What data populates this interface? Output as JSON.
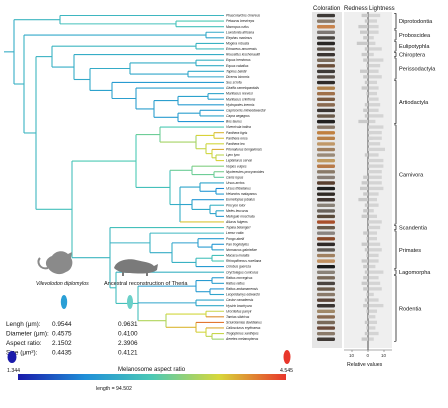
{
  "headers": {
    "coloration": "Coloration",
    "redness": "Redness",
    "lightness": "Lightness"
  },
  "species": [
    "Phascolarctos cinereus",
    "Petaurus breviceps",
    "Macropus rufus",
    "Loxodonta africana",
    "Elephas maximus",
    "Mogera robusta",
    "Erinaceus amurensis",
    "Rousettus leschenaultii",
    "Equus hemionus",
    "Equus caballus",
    "Tapirus bairdii",
    "Diceros bicornis",
    "Sus scrofa",
    "Giraffa camelopardalis",
    "Muntiacus reevesi",
    "Muntiacus crinifrons",
    "Hydropotes inermis",
    "Capricornis milneedwardsii",
    "Capra aegagrus",
    "Bos taurus",
    "Viverricula indica",
    "Panthera tigris",
    "Panthera onca",
    "Panthera leo",
    "Prionailurus bengalensis",
    "Lynx lynx",
    "Leptailurus serval",
    "Vulpes vulpes",
    "Nyctereutes procyonoides",
    "Canis lupus",
    "Ursus arctos",
    "Ursus thibetanus",
    "Helarctos malayanus",
    "Eumetopias jubatus",
    "Procyon lotor",
    "Meles leucurus",
    "Melogale moschata",
    "Ailurus fulgens",
    "Tupaia belangeri",
    "Lemur catta",
    "Pongo abelii",
    "Pan troglodytes",
    "Nomascus gabriellae",
    "Macaca mulatta",
    "Rhinopithecus roxellana",
    "Colobus guereza",
    "Oryctolagus cuniculus",
    "Rattus norvegicus",
    "Rattus rattus",
    "Rattus andamanensis",
    "Leopoldamys edwardsi",
    "Castor canadensis",
    "Hystrix brachyura",
    "Urocitellus parryii",
    "Tamias sibiricus",
    "Sciurotamias davidianus",
    "Callosciurus erythraeus",
    "Trogopterus xanthipes",
    "Aeretes melanopterus"
  ],
  "orders": [
    {
      "name": "Diprotodontia",
      "from": 0,
      "to": 2
    },
    {
      "name": "Proboscidea",
      "from": 3,
      "to": 4
    },
    {
      "name": "Eulipotyphla",
      "from": 5,
      "to": 6
    },
    {
      "name": "Chiroptera",
      "from": 7,
      "to": 7
    },
    {
      "name": "Perissodactyla",
      "from": 8,
      "to": 11
    },
    {
      "name": "Artiodactyla",
      "from": 12,
      "to": 19
    },
    {
      "name": "Carnivora",
      "from": 20,
      "to": 37
    },
    {
      "name": "Scandentia",
      "from": 38,
      "to": 38
    },
    {
      "name": "Primates",
      "from": 39,
      "to": 45
    },
    {
      "name": "Lagomorpha",
      "from": 46,
      "to": 46
    },
    {
      "name": "Rodentia",
      "from": 47,
      "to": 58
    }
  ],
  "values": {
    "redness": [
      -4,
      -2,
      -6,
      -5,
      -3,
      -7,
      -2,
      -4,
      -3,
      -1,
      -5,
      -3,
      -2,
      -4,
      -1,
      0,
      -2,
      -3,
      -2,
      -6,
      1,
      2,
      3,
      1,
      0,
      -2,
      0,
      1,
      0,
      -3,
      -4,
      -5,
      -3,
      -6,
      -2,
      -3,
      -4,
      1,
      0,
      -3,
      -1,
      -4,
      -2,
      -1,
      -4,
      -3,
      -2,
      -3,
      -4,
      -3,
      -1,
      -2,
      -3,
      -1,
      0,
      -2,
      -1,
      -2,
      -4
    ],
    "lightness": [
      7,
      5,
      6,
      6,
      3,
      4,
      8,
      3,
      9,
      7,
      6,
      8,
      5,
      6,
      5,
      6,
      7,
      6,
      9,
      4,
      9,
      8,
      8,
      7,
      10,
      6,
      9,
      9,
      8,
      8,
      8,
      9,
      6,
      5,
      6,
      3,
      5,
      8,
      7,
      5,
      5,
      7,
      8,
      6,
      6,
      4,
      9,
      6,
      7,
      8,
      3,
      6,
      9,
      5,
      4,
      5,
      4,
      6,
      3
    ]
  },
  "colors": {
    "swatches": [
      "#3e3a37",
      "#8a7b6c",
      "#c8834c",
      "#7d7773",
      "#4a4642",
      "#2b2826",
      "#5b524a",
      "#3b3532",
      "#7a6a5a",
      "#6b4e38",
      "#3e3a37",
      "#5a5048",
      "#2f2b29",
      "#b0824c",
      "#a0714a",
      "#7a5a40",
      "#8a6a50",
      "#3a3431",
      "#6a5a4a",
      "#22201f",
      "#8a7a6a",
      "#c08040",
      "#b88048",
      "#c09868",
      "#a08060",
      "#9a8a78",
      "#c09a60",
      "#b87a48",
      "#8a7a68",
      "#8a8078",
      "#5a4030",
      "#202020",
      "#302a25",
      "#403530",
      "#8a8278",
      "#6a625a",
      "#5a4a3a",
      "#a84e2a",
      "#6a5a4a",
      "#8a8480",
      "#8a4a2a",
      "#302a28",
      "#605a55",
      "#a08060",
      "#c09060",
      "#1a1a1a",
      "#8a8278",
      "#7a6a5a",
      "#4a4440",
      "#6a5a4a",
      "#8a7a6a",
      "#5a4438",
      "#3a3432",
      "#a08868",
      "#8a6a50",
      "#7a6a5a",
      "#6a4a3a",
      "#8a7a6a",
      "#403a36"
    ],
    "scale_low": "#1a1aaa",
    "scale_high": "#e8362b",
    "ellipse_left": "#2a9fd6",
    "ellipse_right": "#6ad0c8"
  },
  "labels": {
    "left_species": "Vilevolodon diplomylos",
    "right_species": "Ancestral reconstruction of Theria",
    "stats": [
      {
        "label": "Lengh (μm):",
        "left": "0.9544",
        "right": "0.9631"
      },
      {
        "label": "Diameter (μm):",
        "left": "0.4575",
        "right": "0.4100"
      },
      {
        "label": "Aspect ratio:",
        "left": "2.1502",
        "right": "2.3906"
      },
      {
        "label": "Size (μm²):",
        "left": "0.4435",
        "right": "0.4121"
      }
    ],
    "scale_min": "1.344",
    "scale_max": "4.545",
    "scale_title": "Melanosome aspect ratio",
    "tree_length": "length = 94.502",
    "relative_values": "Relative values",
    "ticks": [
      "10",
      "0",
      "10"
    ]
  }
}
